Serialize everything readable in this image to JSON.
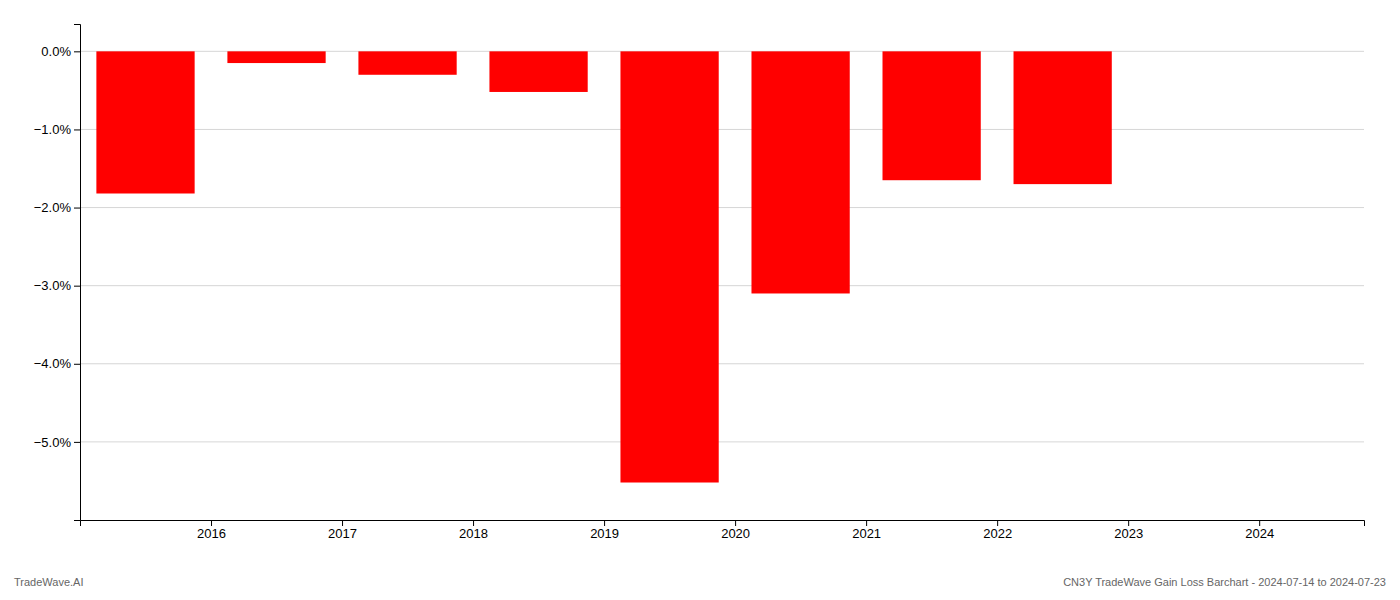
{
  "chart_data": {
    "type": "bar",
    "x": [
      2015.5,
      2016.5,
      2017.5,
      2018.5,
      2019.5,
      2020.5,
      2021.5,
      2022.5
    ],
    "values": [
      -1.82,
      -0.15,
      -0.3,
      -0.52,
      -5.52,
      -3.1,
      -1.65,
      -1.7
    ],
    "color": "#ff0000",
    "xlim": [
      2015.0,
      2024.8
    ],
    "xticks": [
      2016,
      2017,
      2018,
      2019,
      2020,
      2021,
      2022,
      2023,
      2024
    ],
    "ylim": [
      -6.0,
      0.35
    ],
    "yticks": [
      {
        "value": 0.0,
        "label": "0.0%"
      },
      {
        "value": -1.0,
        "label": "−1.0%"
      },
      {
        "value": -2.0,
        "label": "−2.0%"
      },
      {
        "value": -3.0,
        "label": "−3.0%"
      },
      {
        "value": -4.0,
        "label": "−4.0%"
      },
      {
        "value": -5.0,
        "label": "−5.0%"
      }
    ],
    "grid": true,
    "annotations": [
      "TradeWave.AI",
      "CN3Y TradeWave Gain Loss Barchart - 2024-07-14 to 2024-07-23"
    ]
  }
}
